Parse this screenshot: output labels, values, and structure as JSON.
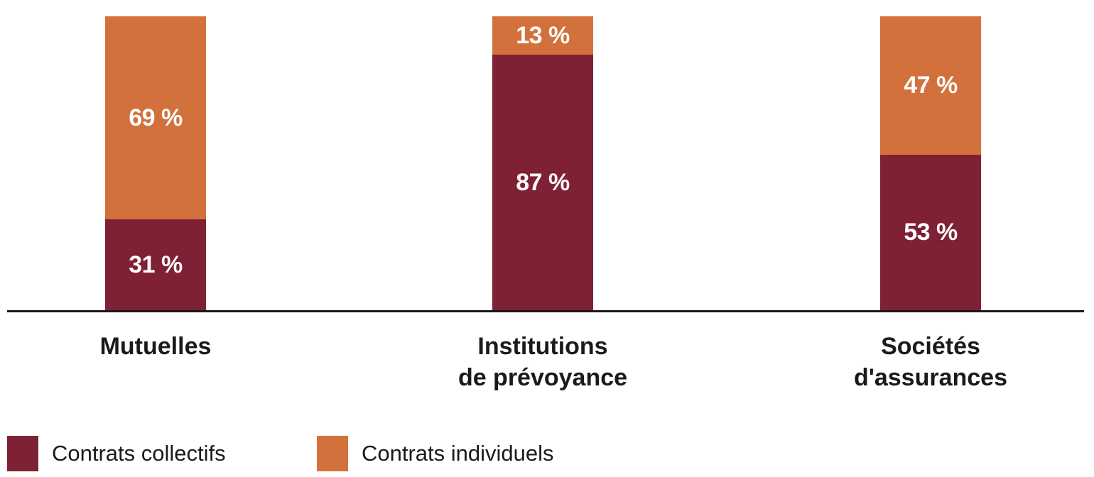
{
  "chart_data": {
    "type": "bar",
    "stacked": true,
    "percent_stacked": true,
    "title": "",
    "xlabel": "",
    "ylabel": "",
    "ylim": [
      0,
      100
    ],
    "grid": false,
    "axis_color": "#1a1a1a",
    "value_suffix": " %",
    "categories": [
      "Mutuelles",
      "Institutions de prévoyance",
      "Sociétés d'assurances"
    ],
    "category_lines": [
      [
        "Mutuelles"
      ],
      [
        "Institutions",
        "de prévoyance"
      ],
      [
        "Sociétés",
        "d'assurances"
      ]
    ],
    "series": [
      {
        "name": "Contrats collectifs",
        "color": "#7e2134",
        "values": [
          31,
          87,
          53
        ]
      },
      {
        "name": "Contrats individuels",
        "color": "#d2713c",
        "values": [
          69,
          13,
          47
        ]
      }
    ],
    "value_labels": [
      [
        "31 %",
        "87 %",
        "53 %"
      ],
      [
        "69 %",
        "13 %",
        "47 %"
      ]
    ],
    "legend_position": "bottom-left"
  },
  "legend": {
    "items": [
      {
        "label": "Contrats collectifs",
        "color": "#7e2134"
      },
      {
        "label": "Contrats individuels",
        "color": "#d2713c"
      }
    ]
  },
  "colors": {
    "background": "#ffffff",
    "bar_value_text": "#ffffff",
    "category_text": "#1a1a1a",
    "axis": "#1a1a1a"
  }
}
